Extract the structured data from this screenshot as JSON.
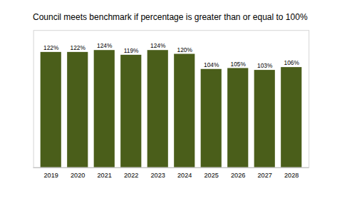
{
  "chart_data": {
    "type": "bar",
    "title": "Council meets benchmark if percentage is greater than or equal to 100%",
    "categories": [
      "2019",
      "2020",
      "2021",
      "2022",
      "2023",
      "2024",
      "2025",
      "2026",
      "2027",
      "2028"
    ],
    "values": [
      122,
      122,
      124,
      119,
      124,
      120,
      104,
      105,
      103,
      106
    ],
    "value_labels": [
      "122%",
      "122%",
      "124%",
      "119%",
      "124%",
      "120%",
      "104%",
      "105%",
      "103%",
      "106%"
    ],
    "data_labels": true,
    "color": "#4a5e1a",
    "ylim": [
      0,
      145
    ],
    "yticks": [],
    "tick_labels": "x",
    "grid": false
  }
}
